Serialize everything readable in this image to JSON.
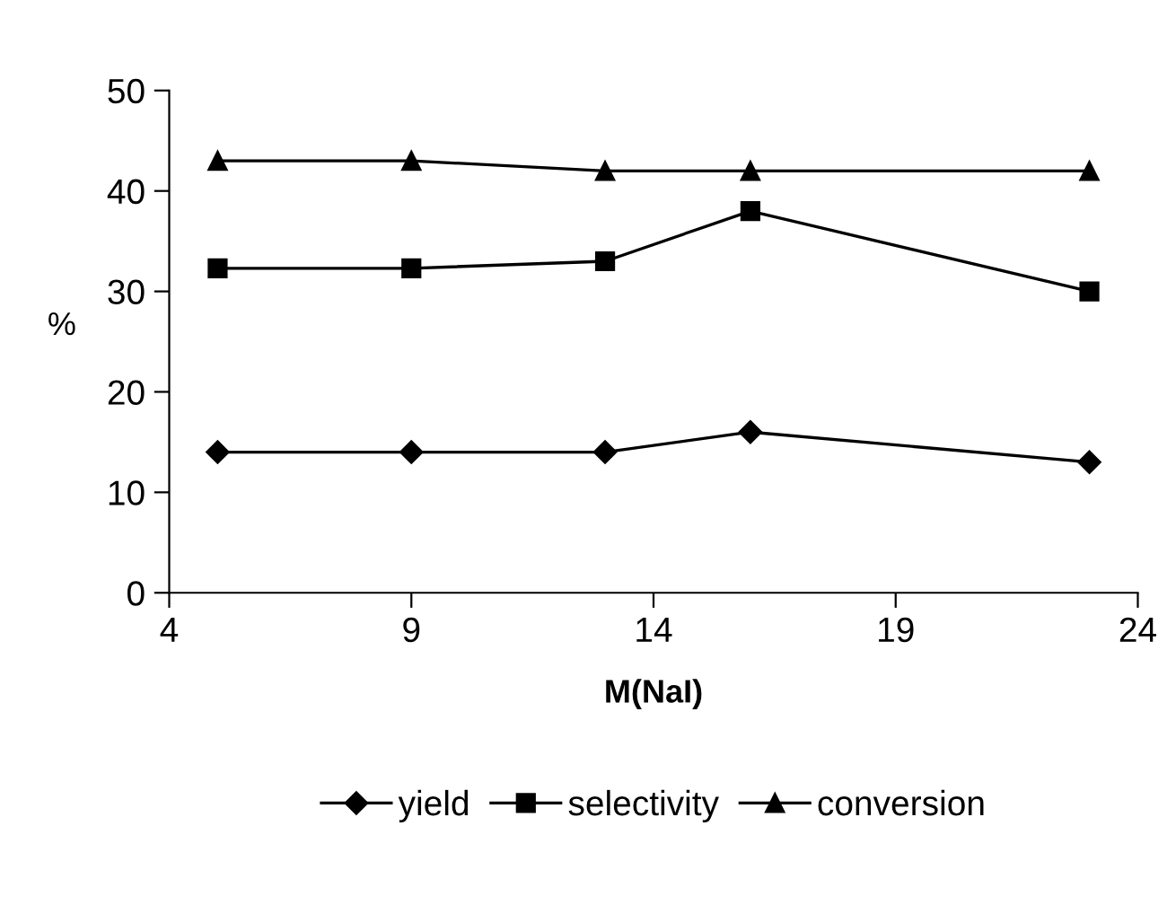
{
  "chart_data": {
    "type": "line",
    "xlabel": "M(NaI)",
    "ylabel": "%",
    "x": [
      5,
      9,
      13,
      16,
      23
    ],
    "series": [
      {
        "name": "yield",
        "color": "#000000",
        "marker": "diamond",
        "values": [
          14,
          14,
          14,
          16,
          13
        ]
      },
      {
        "name": "selectivity",
        "color": "#000000",
        "marker": "square",
        "values": [
          32.3,
          32.3,
          33,
          38,
          30
        ]
      },
      {
        "name": "conversion",
        "color": "#000000",
        "marker": "triangle",
        "values": [
          43,
          43,
          42,
          42,
          42
        ]
      }
    ],
    "xlim": [
      4,
      24
    ],
    "xticks": [
      4,
      9,
      14,
      19,
      24
    ],
    "ylim": [
      0,
      50
    ],
    "yticks": [
      0,
      10,
      20,
      30,
      40,
      50
    ],
    "grid": false,
    "legend": "bottom",
    "line_style": "solid"
  }
}
